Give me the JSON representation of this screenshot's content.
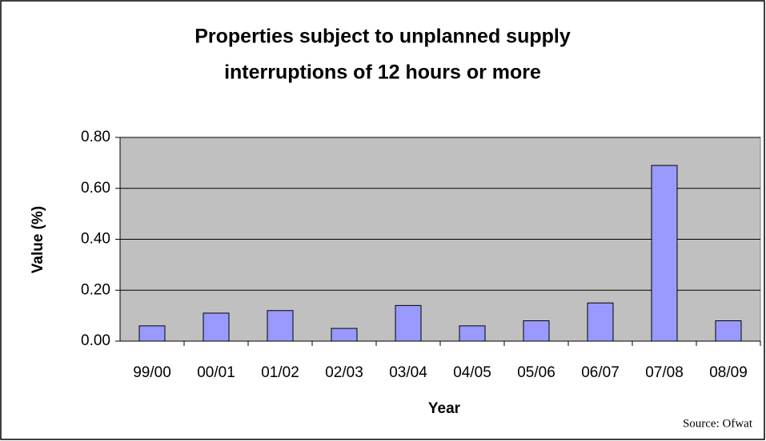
{
  "chart_data": {
    "type": "bar",
    "title": [
      "Properties subject to unplanned supply",
      "interruptions of 12 hours or more"
    ],
    "x_label": "Year",
    "y_label": "Value (%)",
    "annotation": "Source: Ofwat",
    "categories": [
      "99/00",
      "00/01",
      "01/02",
      "02/03",
      "03/04",
      "04/05",
      "05/06",
      "06/07",
      "07/08",
      "08/09"
    ],
    "values": [
      0.06,
      0.11,
      0.12,
      0.05,
      0.14,
      0.06,
      0.08,
      0.15,
      0.69,
      0.08
    ],
    "color": "#9999ff",
    "ylim": [
      0,
      0.8
    ],
    "yticks": [
      {
        "value": 0,
        "label": "0.00"
      },
      {
        "value": 0.2,
        "label": "0.20"
      },
      {
        "value": 0.4,
        "label": "0.40"
      },
      {
        "value": 0.6,
        "label": "0.60"
      },
      {
        "value": 0.8,
        "label": "0.80"
      }
    ],
    "grid": true
  }
}
